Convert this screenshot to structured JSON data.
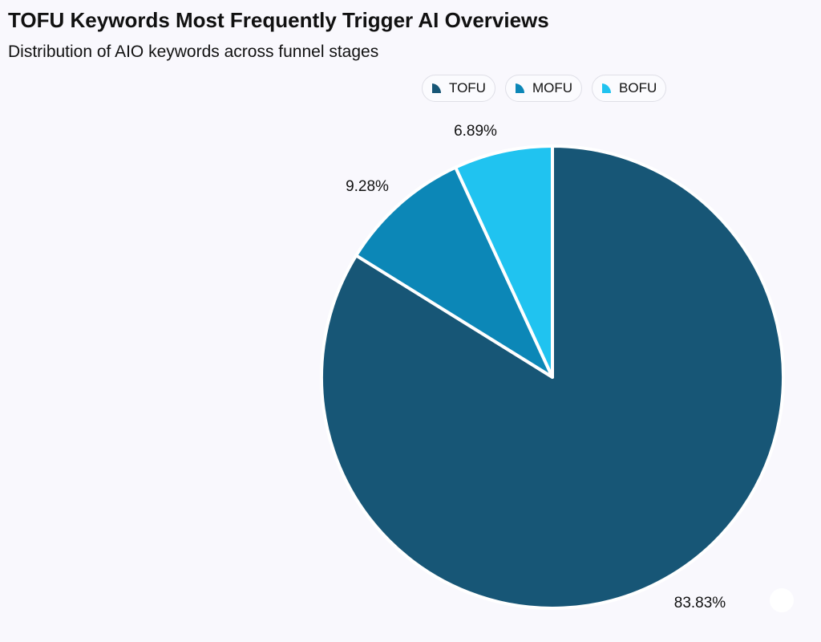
{
  "chart_data": {
    "type": "pie",
    "title": "TOFU Keywords Most Frequently Trigger AI Overviews",
    "subtitle": "Distribution of AIO keywords across funnel stages",
    "legend_position": "top",
    "slices": [
      {
        "name": "TOFU",
        "value": 83.83,
        "label": "83.83%",
        "color": "#175676"
      },
      {
        "name": "MOFU",
        "value": 9.28,
        "label": "9.28%",
        "color": "#0c87b7"
      },
      {
        "name": "BOFU",
        "value": 6.89,
        "label": "6.89%",
        "color": "#20c3f0"
      }
    ]
  }
}
